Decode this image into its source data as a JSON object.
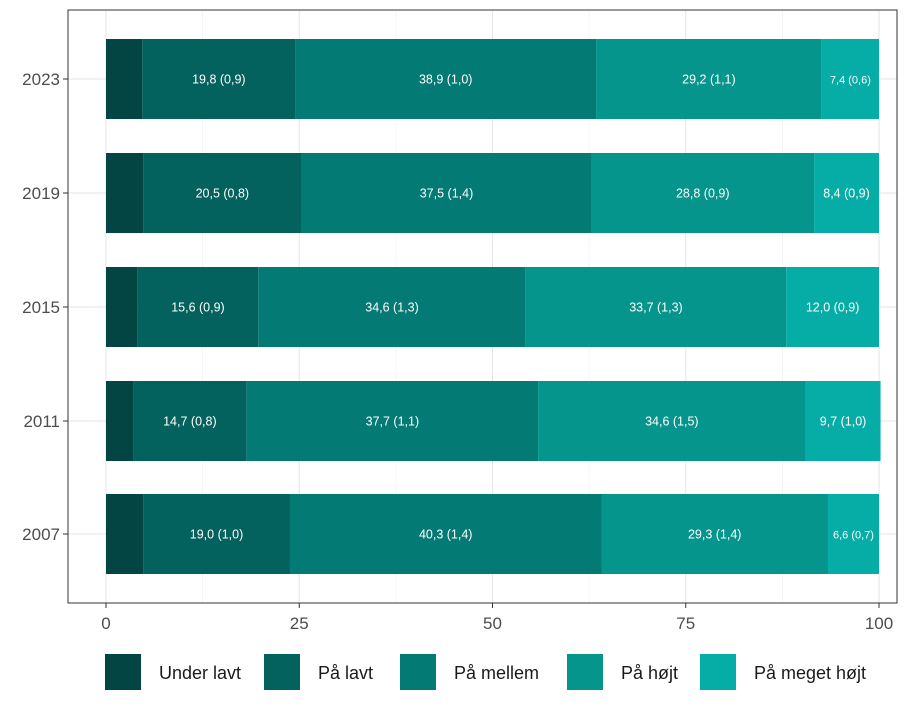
{
  "chart_data": {
    "type": "bar",
    "orientation": "horizontal",
    "stacked": true,
    "categories": [
      "2023",
      "2019",
      "2015",
      "2011",
      "2007"
    ],
    "series": [
      {
        "name": "Under lavt",
        "values": [
          4.7,
          4.8,
          4.1,
          3.5,
          4.8
        ],
        "labels": [
          "",
          "",
          "",
          "",
          ""
        ]
      },
      {
        "name": "På lavt",
        "values": [
          19.8,
          20.5,
          15.6,
          14.7,
          19.0
        ],
        "labels": [
          "19,8 (0,9)",
          "20,5 (0,8)",
          "15,6 (0,9)",
          "14,7 (0,8)",
          "19,0 (1,0)"
        ]
      },
      {
        "name": "På mellem",
        "values": [
          38.9,
          37.5,
          34.6,
          37.7,
          40.3
        ],
        "labels": [
          "38,9 (1,0)",
          "37,5 (1,4)",
          "34,6 (1,3)",
          "37,7 (1,1)",
          "40,3 (1,4)"
        ]
      },
      {
        "name": "På højt",
        "values": [
          29.2,
          28.8,
          33.7,
          34.6,
          29.3
        ],
        "labels": [
          "29,2 (1,1)",
          "28,8 (0,9)",
          "33,7 (1,3)",
          "34,6 (1,5)",
          "29,3 (1,4)"
        ]
      },
      {
        "name": "På meget højt",
        "values": [
          7.4,
          8.4,
          12.0,
          9.7,
          6.6
        ],
        "labels": [
          "7,4 (0,6)",
          "8,4 (0,9)",
          "12,0 (0,9)",
          "9,7 (1,0)",
          "6,6 (0,7)"
        ]
      }
    ],
    "colors": [
      "#024543",
      "#03615e",
      "#047a74",
      "#05958c",
      "#06ada6"
    ],
    "xlim": [
      0,
      100
    ],
    "xticks": [
      0,
      25,
      50,
      75,
      100
    ],
    "xtick_labels": [
      "0",
      "25",
      "50",
      "75",
      "100"
    ],
    "title": "",
    "xlabel": "",
    "ylabel": "",
    "grid": true,
    "legend_position": "bottom"
  }
}
